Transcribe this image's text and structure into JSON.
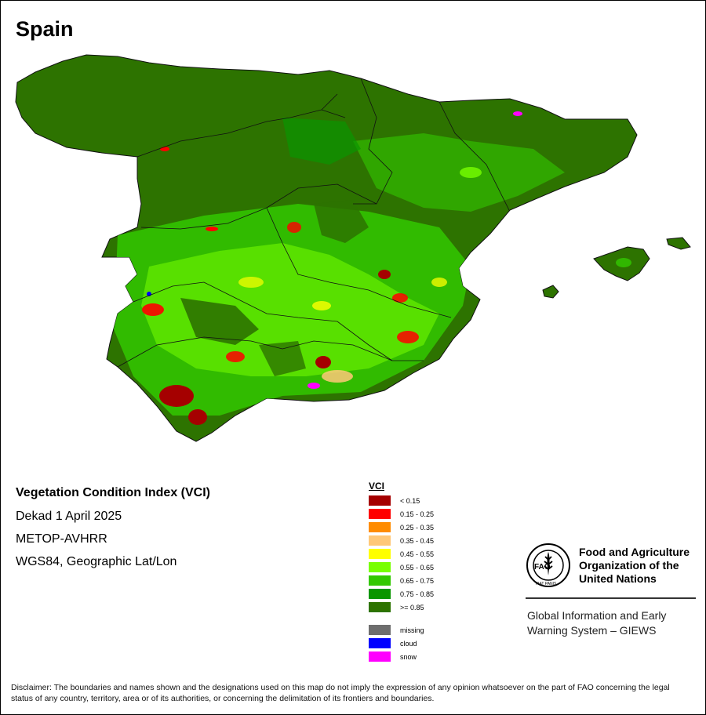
{
  "map_title": "Spain",
  "info": {
    "title": "Vegetation Condition Index (VCI)",
    "date": "Dekad 1 April 2025",
    "sensor": "METOP-AVHRR",
    "projection": "WGS84, Geographic Lat/Lon"
  },
  "legend": {
    "heading": "VCI",
    "classes": [
      {
        "label": "< 0.15",
        "color": "#a50000"
      },
      {
        "label": "0.15 - 0.25",
        "color": "#ff0000"
      },
      {
        "label": "0.25 - 0.35",
        "color": "#ff8c00"
      },
      {
        "label": "0.35 - 0.45",
        "color": "#ffc878"
      },
      {
        "label": "0.45 - 0.55",
        "color": "#ffff00"
      },
      {
        "label": "0.55 - 0.65",
        "color": "#78ff00"
      },
      {
        "label": "0.65 - 0.75",
        "color": "#32c800"
      },
      {
        "label": "0.75 - 0.85",
        "color": "#0a9600"
      },
      {
        "label": ">= 0.85",
        "color": "#2d7300"
      }
    ],
    "special": [
      {
        "label": "missing",
        "color": "#6e6e6e"
      },
      {
        "label": "cloud",
        "color": "#0000ff"
      },
      {
        "label": "snow",
        "color": "#ff00ff"
      }
    ]
  },
  "org": {
    "name": "Food and Agriculture Organization of the United Nations",
    "program": "Global Information and Early Warning System – GIEWS",
    "logo_text": "FAO",
    "logo_motto": "FIAT PANIS"
  },
  "disclaimer": "Disclaimer: The boundaries and names shown and the designations used on this map do not imply the expression of any opinion whatsoever on the part of FAO concerning the legal status of any country, territory, area or of its authorities, or concerning the delimitation of its frontiers and boundaries."
}
